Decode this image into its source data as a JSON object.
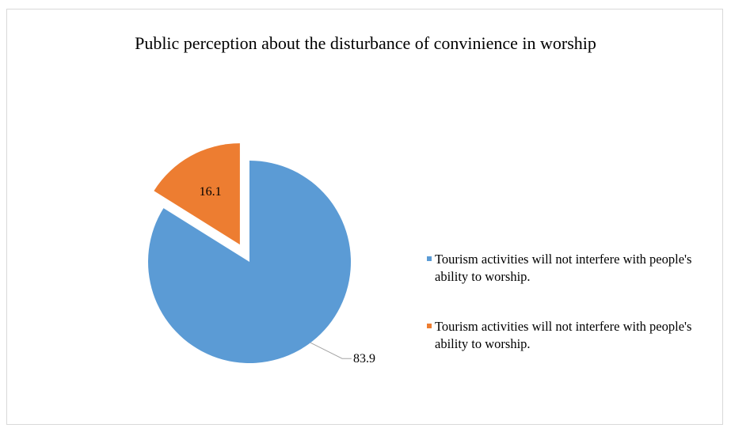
{
  "chart_data": {
    "type": "pie",
    "title": "Public perception about the disturbance of convinience in worship",
    "slices": [
      {
        "label": "Tourism activities will not interfere with people's ability to worship.",
        "value": 83.9,
        "color": "#5b9bd5",
        "exploded": false
      },
      {
        "label": "Tourism activities will not interfere with people's ability to worship.",
        "value": 16.1,
        "color": "#ed7d31",
        "exploded": true
      }
    ],
    "legend_position": "right",
    "start_angle": "12 o'clock, clockwise"
  }
}
